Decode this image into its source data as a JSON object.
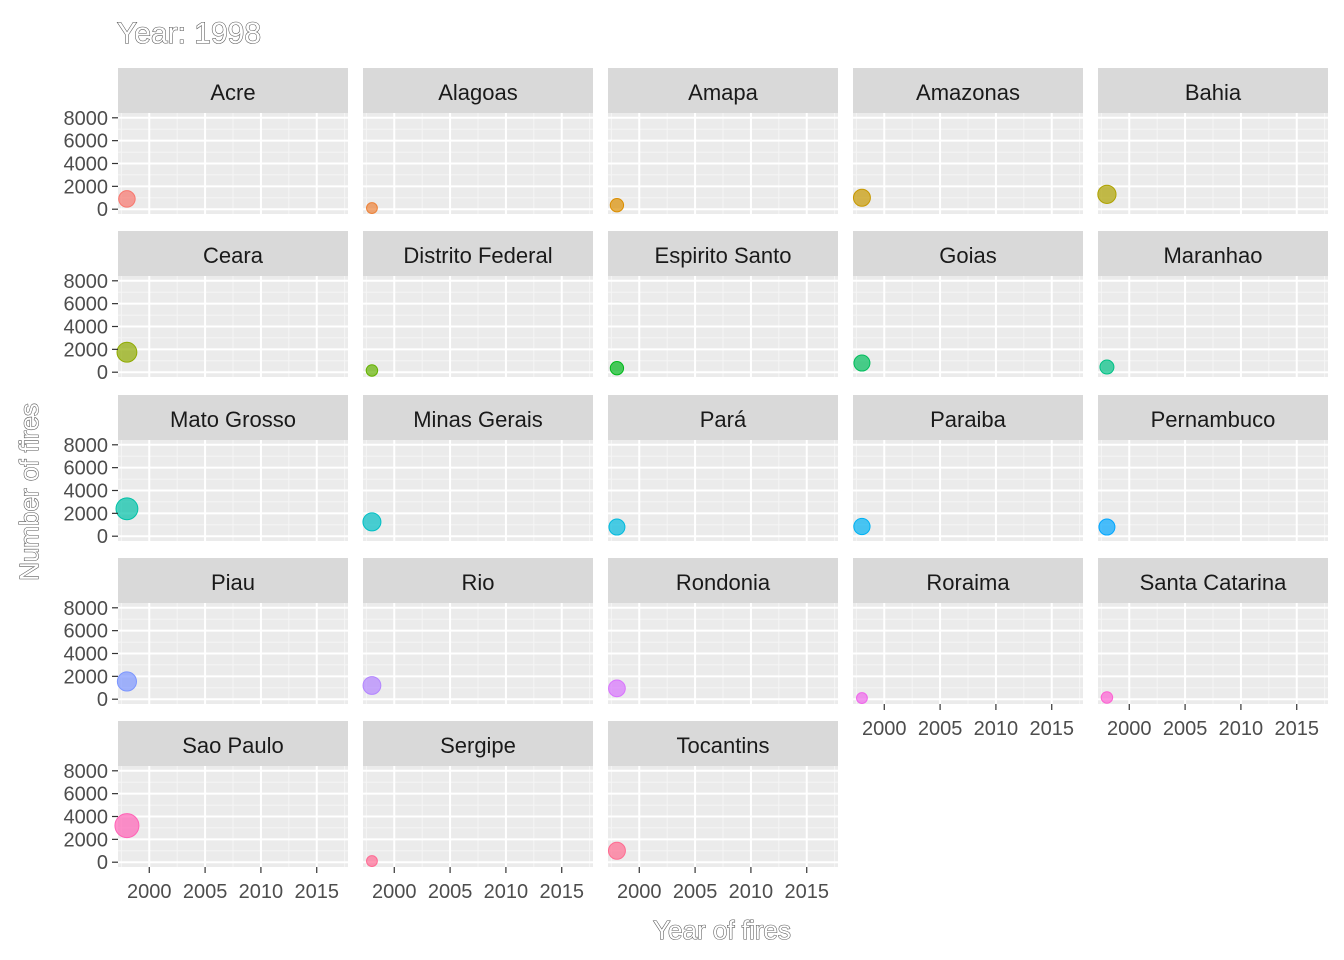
{
  "chart_data": {
    "type": "scatter",
    "title": "Year: 1998",
    "xlabel": "Year of fires",
    "ylabel": "Number of fires",
    "xlim": [
      1997.2,
      2017.8
    ],
    "ylim": [
      -420,
      8420
    ],
    "x_ticks": [
      2000,
      2005,
      2010,
      2015
    ],
    "y_ticks": [
      0,
      2000,
      4000,
      6000,
      8000
    ],
    "x_tick_labels": [
      "2000",
      "2005",
      "2010",
      "2015"
    ],
    "y_tick_labels": [
      "0",
      "2000",
      "4000",
      "6000",
      "8000"
    ],
    "grid": true,
    "legend": "none",
    "facets": [
      {
        "name": "Acre",
        "x": 1998,
        "y": 900,
        "color": "#F8766D"
      },
      {
        "name": "Alagoas",
        "x": 1998,
        "y": 100,
        "color": "#EC8239"
      },
      {
        "name": "Amapa",
        "x": 1998,
        "y": 350,
        "color": "#DB8E00"
      },
      {
        "name": "Amazonas",
        "x": 1998,
        "y": 1000,
        "color": "#C79800"
      },
      {
        "name": "Bahia",
        "x": 1998,
        "y": 1300,
        "color": "#AEA200"
      },
      {
        "name": "Ceara",
        "x": 1998,
        "y": 1750,
        "color": "#8FAA00"
      },
      {
        "name": "Distrito Federal",
        "x": 1998,
        "y": 150,
        "color": "#64B200"
      },
      {
        "name": "Espirito Santo",
        "x": 1998,
        "y": 350,
        "color": "#00B81B"
      },
      {
        "name": "Goias",
        "x": 1998,
        "y": 800,
        "color": "#00BD5C"
      },
      {
        "name": "Maranhao",
        "x": 1998,
        "y": 450,
        "color": "#00C085"
      },
      {
        "name": "Mato Grosso",
        "x": 1998,
        "y": 2400,
        "color": "#00C1A7"
      },
      {
        "name": "Minas Gerais",
        "x": 1998,
        "y": 1250,
        "color": "#00BFC4"
      },
      {
        "name": "Pará",
        "x": 1998,
        "y": 800,
        "color": "#00BADE"
      },
      {
        "name": "Paraiba",
        "x": 1998,
        "y": 850,
        "color": "#00B2F3"
      },
      {
        "name": "Pernambuco",
        "x": 1998,
        "y": 800,
        "color": "#00A6FF"
      },
      {
        "name": "Piau",
        "x": 1998,
        "y": 1550,
        "color": "#7C96FF"
      },
      {
        "name": "Rio",
        "x": 1998,
        "y": 1200,
        "color": "#B385FF"
      },
      {
        "name": "Rondonia",
        "x": 1998,
        "y": 950,
        "color": "#D874FD"
      },
      {
        "name": "Roraima",
        "x": 1998,
        "y": 100,
        "color": "#EF67EB"
      },
      {
        "name": "Santa Catarina",
        "x": 1998,
        "y": 150,
        "color": "#FD61D3"
      },
      {
        "name": "Sao Paulo",
        "x": 1998,
        "y": 3200,
        "color": "#FF63B6"
      },
      {
        "name": "Sergipe",
        "x": 1998,
        "y": 100,
        "color": "#FF6B94"
      },
      {
        "name": "Tocantins",
        "x": 1998,
        "y": 1000,
        "color": "#FF6C91"
      }
    ]
  }
}
